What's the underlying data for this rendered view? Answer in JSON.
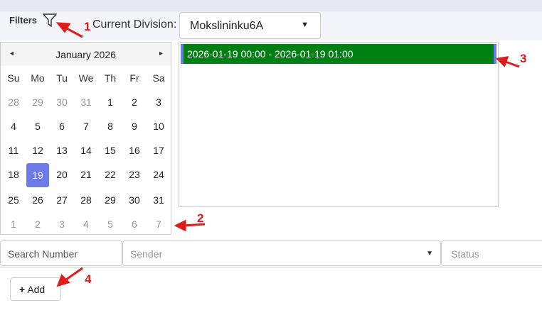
{
  "header": {
    "filters_label": "Filters",
    "division_label": "Current Division:",
    "division_value": "Mokslininku6A"
  },
  "calendar": {
    "title": "January 2026",
    "prev": "◂",
    "next": "▸",
    "day_names": [
      "Su",
      "Mo",
      "Tu",
      "We",
      "Th",
      "Fr",
      "Sa"
    ],
    "weeks": [
      [
        "28",
        "29",
        "30",
        "31",
        "1",
        "2",
        "3"
      ],
      [
        "4",
        "5",
        "6",
        "7",
        "8",
        "9",
        "10"
      ],
      [
        "11",
        "12",
        "13",
        "14",
        "15",
        "16",
        "17"
      ],
      [
        "18",
        "19",
        "20",
        "21",
        "22",
        "23",
        "24"
      ],
      [
        "25",
        "26",
        "27",
        "28",
        "29",
        "30",
        "31"
      ],
      [
        "1",
        "2",
        "3",
        "4",
        "5",
        "6",
        "7"
      ]
    ],
    "selected": "19"
  },
  "event": {
    "label": "2026-01-19 00:00 - 2026-01-19 01:00",
    "color": "#008012"
  },
  "filters": {
    "search_number": "Search Number",
    "sender_placeholder": "Sender",
    "status_placeholder": "Status"
  },
  "add_button": {
    "label": "Add",
    "icon": "+"
  },
  "annotations": [
    "1",
    "2",
    "3",
    "4"
  ],
  "colors": {
    "accent": "#6c7be8",
    "annotation": "#e01b1b"
  }
}
